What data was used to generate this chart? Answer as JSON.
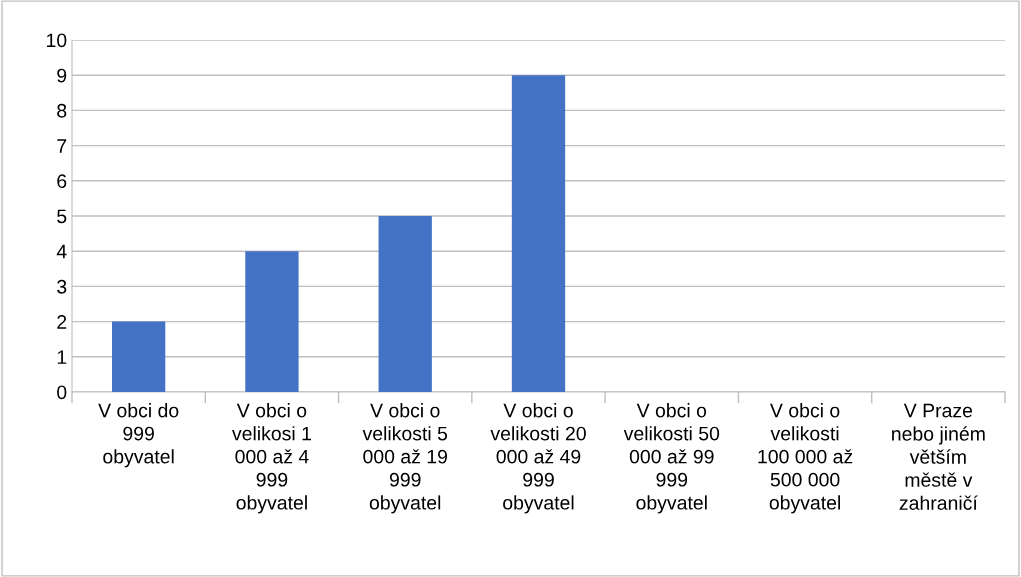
{
  "chart_data": {
    "type": "bar",
    "categories": [
      "V obci do\n999\nobyvatel",
      "V obci o\nvelikosi 1\n000 až 4\n999\nobyvatel",
      "V obci o\nvelikosti 5\n000 až 19\n999\nobyvatel",
      "V obci o\nvelikosti 20\n000 až 49\n999\nobyvatel",
      "V obci o\nvelikosti 50\n000 až 99\n999\nobyvatel",
      "V obci o\nvelikosti\n100 000 až\n500 000\nobyvatel",
      "V Praze\nnebo jiném\nvětším\nměstě v\nzahraničí"
    ],
    "values": [
      2,
      4,
      5,
      9,
      0,
      0,
      0
    ],
    "color": "#4472c4",
    "ylim": [
      0,
      10
    ],
    "yticks": [
      0,
      1,
      2,
      3,
      4,
      5,
      6,
      7,
      8,
      9,
      10
    ],
    "grid": "y",
    "legend": false
  }
}
